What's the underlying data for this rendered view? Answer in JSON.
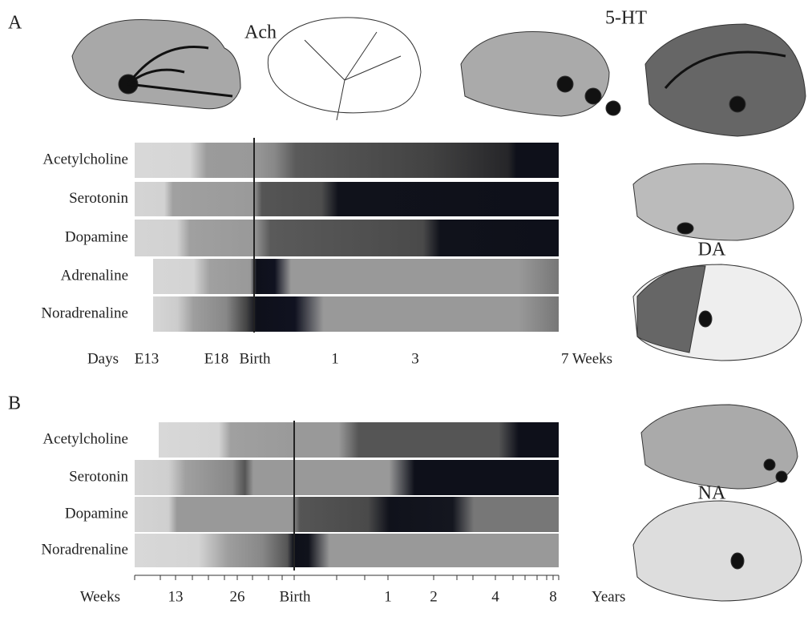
{
  "panels": [
    {
      "label": "A",
      "rows": [
        "Acetylcholine",
        "Serotonin",
        "Dopamine",
        "Adrenaline",
        "Noradrenaline"
      ],
      "axis": [
        "Days",
        "E13",
        "E18",
        "Birth",
        "1",
        "3",
        "7 Weeks"
      ]
    },
    {
      "label": "B",
      "rows": [
        "Acetylcholine",
        "Serotonin",
        "Dopamine",
        "Noradrenaline"
      ],
      "axis": [
        "Weeks",
        "13",
        "26",
        "Birth",
        "1",
        "2",
        "4",
        "8",
        "Years"
      ]
    }
  ],
  "brains": [
    "Ach",
    "5-HT",
    "DA",
    "NA"
  ]
}
